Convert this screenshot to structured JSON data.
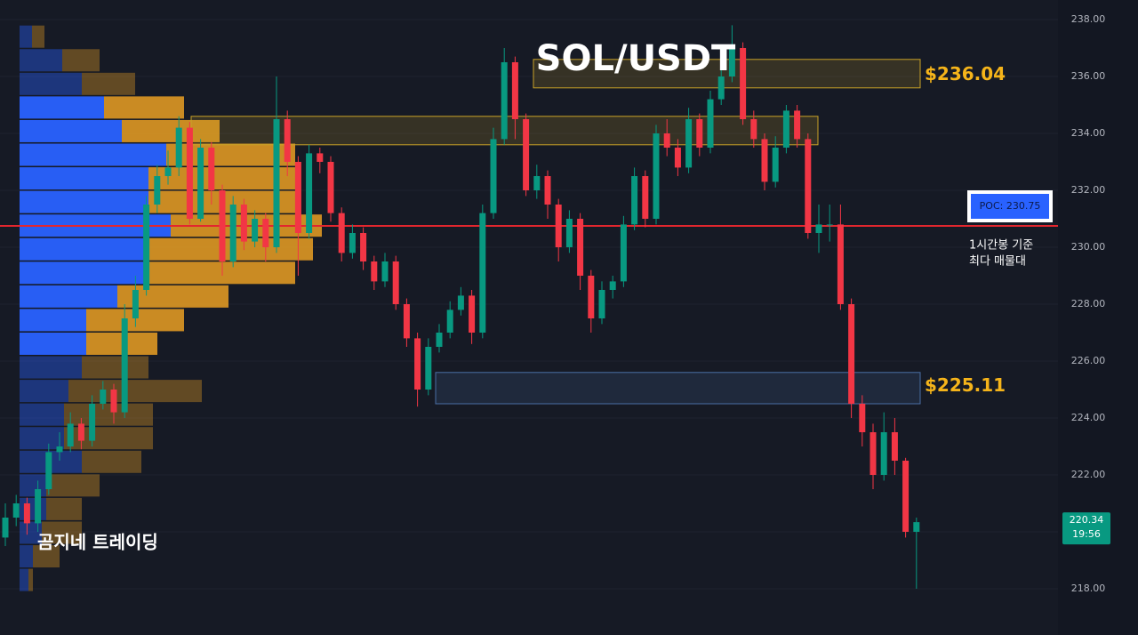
{
  "chart_data": {
    "type": "candlestick",
    "title": "SOL/USDT",
    "ylim": [
      216.375,
      238.6875
    ],
    "yticks": [
      {
        "value": 238,
        "label": "238.00"
      },
      {
        "value": 236,
        "label": "236.00"
      },
      {
        "value": 234,
        "label": "234.00"
      },
      {
        "value": 232,
        "label": "232.00"
      },
      {
        "value": 230,
        "label": "230.00"
      },
      {
        "value": 228,
        "label": "228.00"
      },
      {
        "value": 226,
        "label": "226.00"
      },
      {
        "value": 224,
        "label": "224.00"
      },
      {
        "value": 222,
        "label": "222.00"
      },
      {
        "value": 220,
        "label": "220.00"
      },
      {
        "value": 218,
        "label": "218.00"
      }
    ],
    "up_color": "#089981",
    "down_color": "#f23645",
    "open": [
      219.8,
      220.5,
      221.0,
      220.3,
      221.5,
      222.8,
      223.0,
      223.8,
      223.2,
      224.5,
      225.0,
      224.2,
      227.5,
      228.5,
      231.5,
      232.5,
      232.8,
      234.2,
      231.0,
      233.5,
      232.0,
      229.5,
      231.5,
      230.2,
      231.0,
      230.0,
      234.5,
      233.0,
      230.5,
      233.3,
      233.0,
      231.2,
      229.8,
      230.5,
      229.5,
      228.8,
      229.5,
      228.0,
      226.8,
      225.0,
      226.5,
      227.0,
      227.8,
      228.3,
      227.0,
      231.2,
      233.8,
      236.5,
      234.5,
      232.0,
      232.5,
      231.5,
      230.0,
      231.0,
      229.0,
      227.5,
      228.5,
      228.8,
      230.8,
      232.5,
      231.0,
      234.0,
      233.5,
      232.8,
      234.5,
      233.5,
      235.2,
      236.0,
      237.0,
      234.5,
      233.8,
      232.3,
      233.5,
      234.8,
      233.8,
      230.5,
      230.8,
      230.8,
      228.0,
      224.5,
      223.5,
      222.0,
      223.5,
      222.5,
      220.0
    ],
    "high": [
      221.0,
      221.3,
      221.2,
      221.8,
      223.1,
      223.5,
      224.2,
      224.0,
      224.8,
      225.3,
      225.2,
      228.0,
      229.0,
      231.8,
      232.9,
      233.4,
      234.6,
      234.4,
      233.8,
      233.7,
      232.2,
      231.8,
      231.7,
      231.3,
      231.2,
      236.0,
      234.8,
      233.2,
      233.6,
      233.5,
      233.2,
      231.4,
      230.8,
      230.7,
      229.7,
      229.8,
      229.7,
      228.2,
      227.0,
      226.8,
      227.3,
      228.1,
      228.6,
      228.5,
      231.5,
      234.2,
      237.0,
      236.7,
      234.7,
      232.9,
      232.7,
      231.7,
      231.3,
      231.2,
      229.2,
      228.8,
      229.0,
      231.1,
      232.8,
      232.7,
      234.3,
      234.5,
      233.8,
      234.9,
      234.7,
      235.5,
      236.8,
      237.8,
      237.2,
      234.8,
      234.0,
      233.9,
      235.0,
      235.0,
      234.0,
      231.5,
      231.5,
      231.5,
      228.2,
      224.8,
      223.8,
      224.2,
      224.0,
      222.6,
      220.5
    ],
    "low": [
      219.5,
      220.2,
      219.9,
      220.0,
      221.3,
      222.5,
      222.8,
      222.9,
      223.0,
      224.3,
      223.8,
      224.0,
      227.2,
      228.3,
      231.2,
      232.2,
      232.5,
      230.8,
      230.9,
      231.5,
      229.0,
      229.3,
      229.9,
      230.0,
      229.5,
      229.8,
      232.5,
      229.0,
      230.3,
      232.6,
      230.9,
      229.5,
      229.6,
      229.2,
      228.5,
      228.6,
      227.8,
      226.5,
      224.4,
      224.8,
      226.3,
      226.8,
      227.6,
      226.6,
      226.8,
      231.0,
      233.6,
      233.8,
      231.8,
      231.7,
      231.0,
      229.5,
      229.8,
      228.5,
      227.0,
      227.3,
      228.2,
      228.6,
      230.6,
      230.7,
      230.8,
      233.2,
      232.5,
      232.6,
      233.2,
      233.3,
      235.0,
      235.8,
      234.3,
      233.5,
      232.0,
      232.1,
      233.3,
      233.5,
      230.3,
      229.8,
      230.2,
      227.8,
      224.0,
      223.0,
      221.5,
      221.8,
      222.0,
      219.8,
      218.0
    ],
    "close": [
      220.5,
      221.0,
      220.3,
      221.5,
      222.8,
      223.0,
      223.8,
      223.2,
      224.5,
      225.0,
      224.2,
      227.5,
      228.5,
      231.5,
      232.5,
      232.8,
      234.2,
      231.0,
      233.5,
      232.0,
      229.5,
      231.5,
      230.2,
      231.0,
      230.0,
      234.5,
      233.0,
      230.5,
      233.3,
      233.0,
      231.2,
      229.8,
      230.5,
      229.5,
      228.8,
      229.5,
      228.0,
      226.8,
      225.0,
      226.5,
      227.0,
      227.8,
      228.3,
      227.0,
      231.2,
      233.8,
      236.5,
      234.5,
      232.0,
      232.5,
      231.5,
      230.0,
      231.0,
      229.0,
      227.5,
      228.5,
      228.8,
      230.8,
      232.5,
      231.0,
      234.0,
      233.5,
      232.8,
      234.5,
      233.5,
      235.2,
      236.0,
      237.0,
      234.5,
      233.8,
      232.3,
      233.5,
      234.8,
      233.8,
      230.5,
      230.8,
      230.8,
      228.0,
      224.5,
      223.5,
      222.0,
      223.5,
      222.5,
      220.0,
      220.34
    ],
    "volume_profile": {
      "levels": [
        237.4,
        236.57,
        235.74,
        234.91,
        234.08,
        233.25,
        232.42,
        231.59,
        230.76,
        229.93,
        229.1,
        228.27,
        227.44,
        226.61,
        225.78,
        224.95,
        224.12,
        223.29,
        222.46,
        221.63,
        220.8,
        219.97,
        219.14,
        218.31
      ],
      "buy": [
        14,
        48,
        70,
        95,
        115,
        165,
        145,
        145,
        170,
        145,
        145,
        110,
        75,
        75,
        70,
        55,
        50,
        50,
        70,
        30,
        30,
        25,
        15,
        10
      ],
      "sell": [
        14,
        42,
        60,
        90,
        110,
        145,
        165,
        165,
        170,
        185,
        165,
        125,
        110,
        80,
        75,
        150,
        100,
        100,
        67,
        60,
        40,
        45,
        30,
        5
      ],
      "value_area": [
        226.2,
        235.4
      ],
      "buy_color": "#2962ff",
      "sell_color": "#f5a623"
    },
    "zones": [
      {
        "ymin": 235.6,
        "ymax": 236.6,
        "price": {
          "value": 236.04,
          "label": "$236.04"
        },
        "color": "#c9a227"
      },
      {
        "ymin": 233.6,
        "ymax": 234.6,
        "color": "#c9a227"
      },
      {
        "ymin": 224.5,
        "ymax": 225.6,
        "price": {
          "value": 225.11,
          "label": "$225.11"
        },
        "color": "#4a6fa5"
      }
    ],
    "poc": {
      "value": 230.75,
      "label": "POC: 230.75"
    },
    "poc_note": [
      "1시간봉 기준",
      "최다 매물대"
    ],
    "last_price": {
      "value": 220.34,
      "label": "220.34"
    },
    "countdown": "19:56",
    "watermark": "곰지네 트레이딩"
  }
}
